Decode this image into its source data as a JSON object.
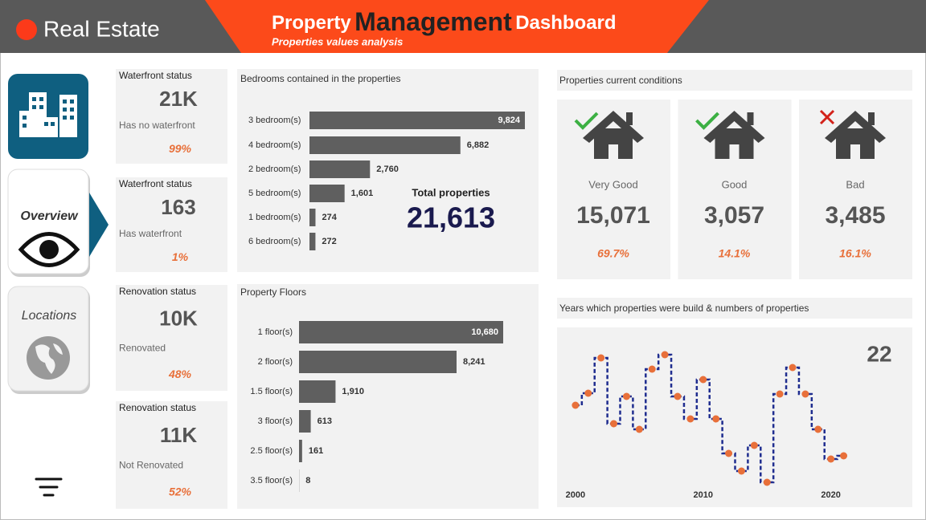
{
  "header": {
    "brand": "Real Estate",
    "title_pre": "Property",
    "title_main": "Management",
    "title_post": "Dashboard",
    "subtitle": "Properties values analysis"
  },
  "nav": [
    "Overview",
    "Locations"
  ],
  "kpis": [
    {
      "title": "Waterfront status",
      "value": "21K",
      "label": "Has no waterfront",
      "percent": "99%"
    },
    {
      "title": "Waterfront status",
      "value": "163",
      "label": "Has waterfront",
      "percent": "1%"
    },
    {
      "title": "Renovation status",
      "value": "10K",
      "label": "Renovated",
      "percent": "48%"
    },
    {
      "title": "Renovation status",
      "value": "11K",
      "label": "Not Renovated",
      "percent": "52%"
    }
  ],
  "bedrooms": {
    "type": "bar",
    "title": "Bedrooms contained in the properties",
    "categories": [
      "3 bedroom(s)",
      "4 bedroom(s)",
      "2 bedroom(s)",
      "5 bedroom(s)",
      "1 bedroom(s)",
      "6 bedroom(s)"
    ],
    "values": [
      9824,
      6882,
      2760,
      1601,
      274,
      272
    ],
    "value_labels": [
      "9,824",
      "6,882",
      "2,760",
      "1,601",
      "274",
      "272"
    ],
    "color": "#5f5f5f",
    "total_label": "Total properties",
    "total": "21,613"
  },
  "floors": {
    "type": "bar",
    "title": "Property Floors",
    "categories": [
      "1 floor(s)",
      "2 floor(s)",
      "1.5 floor(s)",
      "3 floor(s)",
      "2.5 floor(s)",
      "3.5 floor(s)"
    ],
    "values": [
      10680,
      8241,
      1910,
      613,
      161,
      8
    ],
    "value_labels": [
      "10,680",
      "8,241",
      "1,910",
      "613",
      "161",
      "8"
    ],
    "color": "#5f5f5f"
  },
  "conditions": {
    "title": "Properties current conditions",
    "items": [
      {
        "label": "Very Good",
        "value": "15,071",
        "percent": "69.7%"
      },
      {
        "label": "Good",
        "value": "3,057",
        "percent": "14.1%"
      },
      {
        "label": "Bad",
        "value": "3,485",
        "percent": "16.1%"
      }
    ]
  },
  "years": {
    "type": "line",
    "title": "Years which properties were build & numbers of properties",
    "callout": "22",
    "x": [
      2000,
      2001,
      2002,
      2003,
      2004,
      2005,
      2006,
      2007,
      2008,
      2009,
      2010,
      2011,
      2012,
      2013,
      2014,
      2015,
      2016,
      2017,
      2018,
      2019,
      2020,
      2021
    ],
    "values": [
      105,
      120,
      164,
      82,
      116,
      75,
      150,
      168,
      116,
      88,
      137,
      88,
      45,
      23,
      55,
      9,
      119,
      152,
      119,
      75,
      38,
      42
    ],
    "xlim": [
      1999,
      2026
    ],
    "ylim": [
      0,
      180
    ],
    "xticks": [
      2000,
      2010,
      2020
    ],
    "color": "#1f2d8f",
    "marker_color": "#e8703a"
  }
}
